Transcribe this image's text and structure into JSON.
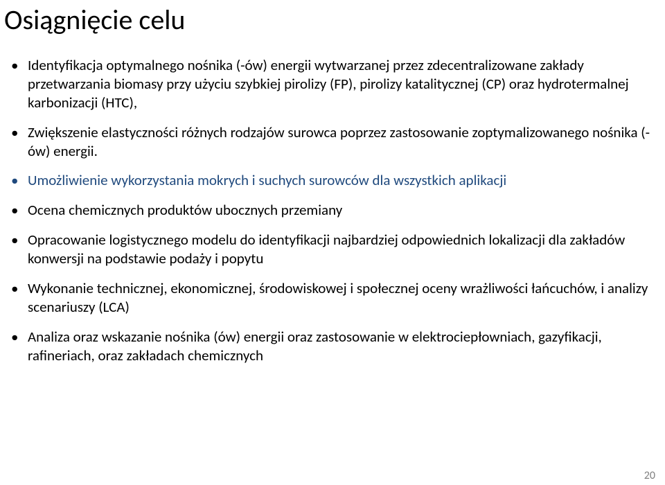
{
  "title": "Osiągnięcie celu",
  "text_color": "#000000",
  "accent_color": "#1f497d",
  "page_number_color": "#7f7f7f",
  "background_color": "#ffffff",
  "title_fontsize": 40,
  "bullet_fontsize": 21,
  "bullets": [
    {
      "text": "Identyfikacja optymalnego nośnika (-ów) energii wytwarzanej przez zdecentralizowane zakłady przetwarzania biomasy przy użyciu szybkiej pirolizy (FP), pirolizy katalitycznej (CP) oraz hydrotermalnej karbonizacji (HTC),",
      "blue": false
    },
    {
      "text": "Zwiększenie elastyczności różnych rodzajów surowca poprzez zastosowanie zoptymalizowanego nośnika (-ów) energii.",
      "blue": false
    },
    {
      "text": "Umożliwienie wykorzystania mokrych i suchych surowców dla wszystkich aplikacji",
      "blue": true
    },
    {
      "text": "Ocena chemicznych produktów ubocznych przemiany",
      "blue": false
    },
    {
      "text": "Opracowanie logistycznego modelu do identyfikacji najbardziej odpowiednich lokalizacji dla zakładów konwersji na podstawie podaży i popytu",
      "blue": false
    },
    {
      "text": "Wykonanie technicznej, ekonomicznej, środowiskowej i społecznej oceny wrażliwości łańcuchów, i analizy scenariuszy (LCA)",
      "blue": false
    },
    {
      "text": "Analiza oraz wskazanie nośnika (ów) energii oraz zastosowanie w elektrociepłowniach, gazyfikacji, rafineriach, oraz zakładach chemicznych",
      "blue": false
    }
  ],
  "page_number": "20"
}
